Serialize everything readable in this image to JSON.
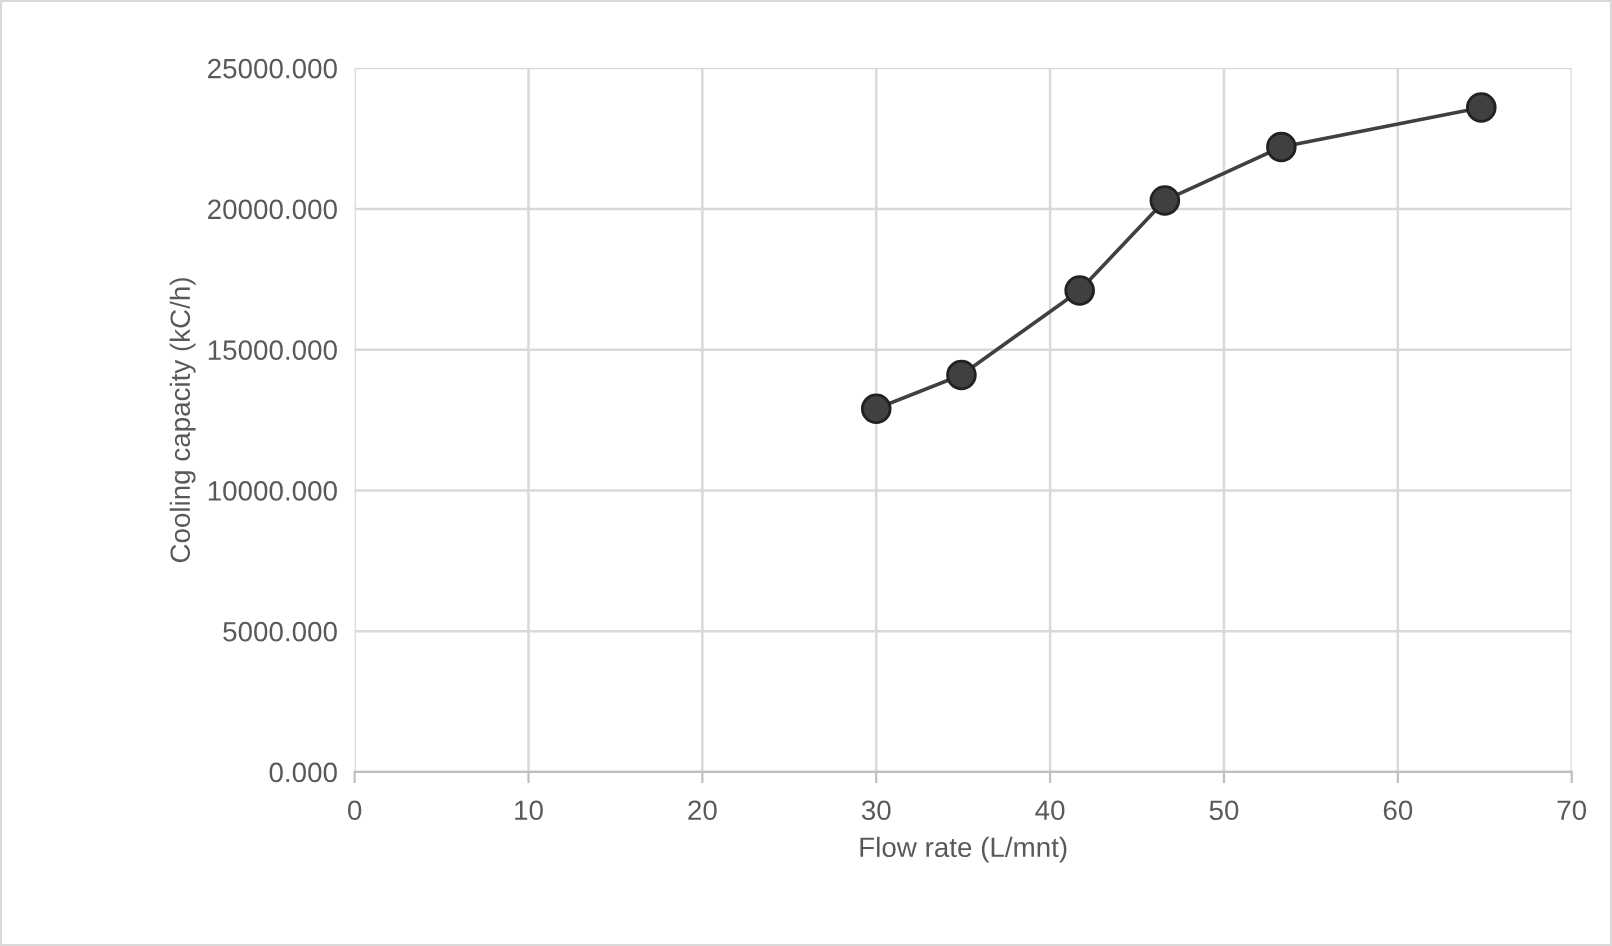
{
  "chart_data": {
    "type": "line",
    "xlabel": "Flow rate (L/mnt)",
    "ylabel": "Cooling capacity (kC/h)",
    "x": [
      30.0,
      34.9,
      41.7,
      46.6,
      53.3,
      64.8
    ],
    "series": [
      {
        "color": "#404040",
        "values": [
          12900,
          14100,
          17100,
          20300,
          22200,
          23600
        ]
      }
    ],
    "xlim": [
      0,
      70
    ],
    "xticks": [
      0,
      10,
      20,
      30,
      40,
      50,
      60,
      70
    ],
    "ylim": [
      0,
      25000
    ],
    "yticks": [
      {
        "value": 0,
        "label": "0.000"
      },
      {
        "value": 5000,
        "label": "5000.000"
      },
      {
        "value": 10000,
        "label": "10000.000"
      },
      {
        "value": 15000,
        "label": "15000.000"
      },
      {
        "value": 20000,
        "label": "20000.000"
      },
      {
        "value": 25000,
        "label": "25000.000"
      }
    ],
    "grid": true,
    "marker": "circle",
    "line_style": "solid"
  }
}
